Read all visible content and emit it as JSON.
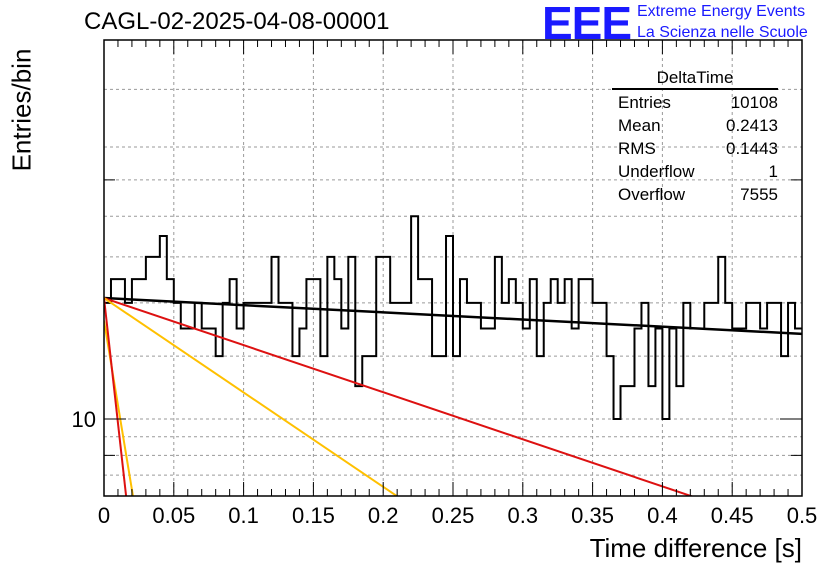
{
  "title": "CAGL-02-2025-04-08-00001",
  "logo": {
    "mark": "EEE",
    "line1": "Extreme Energy Events",
    "line2": "La Scienza nelle Scuole",
    "color": "#1a1aff"
  },
  "stats_box": {
    "title": "DeltaTime",
    "rows": [
      {
        "label": "Entries",
        "value": "10108"
      },
      {
        "label": "Mean",
        "value": "0.2413"
      },
      {
        "label": "RMS",
        "value": "0.1443"
      },
      {
        "label": "Underflow",
        "value": "1"
      },
      {
        "label": "Overflow",
        "value": "7555"
      }
    ]
  },
  "chart_data": {
    "type": "line",
    "xlabel": "Time difference [s]",
    "ylabel": "Entries/bin",
    "xlim": [
      0,
      0.5
    ],
    "ylim": [
      8.0,
      30.0
    ],
    "ylog": true,
    "grid": true,
    "xticks": [
      "0",
      "0.05",
      "0.1",
      "0.15",
      "0.2",
      "0.25",
      "0.3",
      "0.35",
      "0.4",
      "0.45",
      "0.5"
    ],
    "yticks": [
      "10"
    ],
    "histogram": {
      "bin_width": 0.005,
      "color": "#000000",
      "values": [
        14,
        15,
        15,
        14,
        15,
        15,
        16,
        16,
        17,
        15,
        14,
        13,
        13,
        14,
        13,
        13,
        12,
        14,
        15,
        13,
        14,
        14,
        14,
        14,
        16,
        14,
        14,
        12,
        13,
        15,
        15,
        12,
        16,
        15,
        13,
        16,
        11,
        12,
        12,
        16,
        16,
        14,
        14,
        14,
        18,
        15,
        15,
        12,
        12,
        17,
        12,
        15,
        14,
        14,
        13,
        13,
        16,
        14,
        15,
        14,
        13,
        15,
        12,
        14,
        15,
        14,
        15,
        13,
        15,
        15,
        14,
        14,
        12,
        10,
        11,
        11,
        13,
        14,
        11,
        13,
        10,
        13,
        11,
        14,
        13,
        13,
        14,
        14,
        16,
        14,
        13,
        13,
        14,
        14,
        13,
        14,
        14,
        12,
        14,
        13
      ]
    },
    "series": [
      {
        "color": "#000000",
        "x": [
          0,
          0.5
        ],
        "y": [
          14.2,
          12.8
        ]
      },
      {
        "color": "#dd1111",
        "x": [
          0,
          0.425
        ],
        "y": [
          14.2,
          7.95
        ]
      },
      {
        "color": "#ffc000",
        "x": [
          0,
          0.212
        ],
        "y": [
          14.2,
          7.95
        ]
      },
      {
        "color": "#ffc000",
        "x": [
          0,
          0.021
        ],
        "y": [
          13.3,
          7.95
        ]
      },
      {
        "color": "#dd1111",
        "x": [
          0,
          0.016
        ],
        "y": [
          14.2,
          7.95
        ]
      }
    ]
  }
}
